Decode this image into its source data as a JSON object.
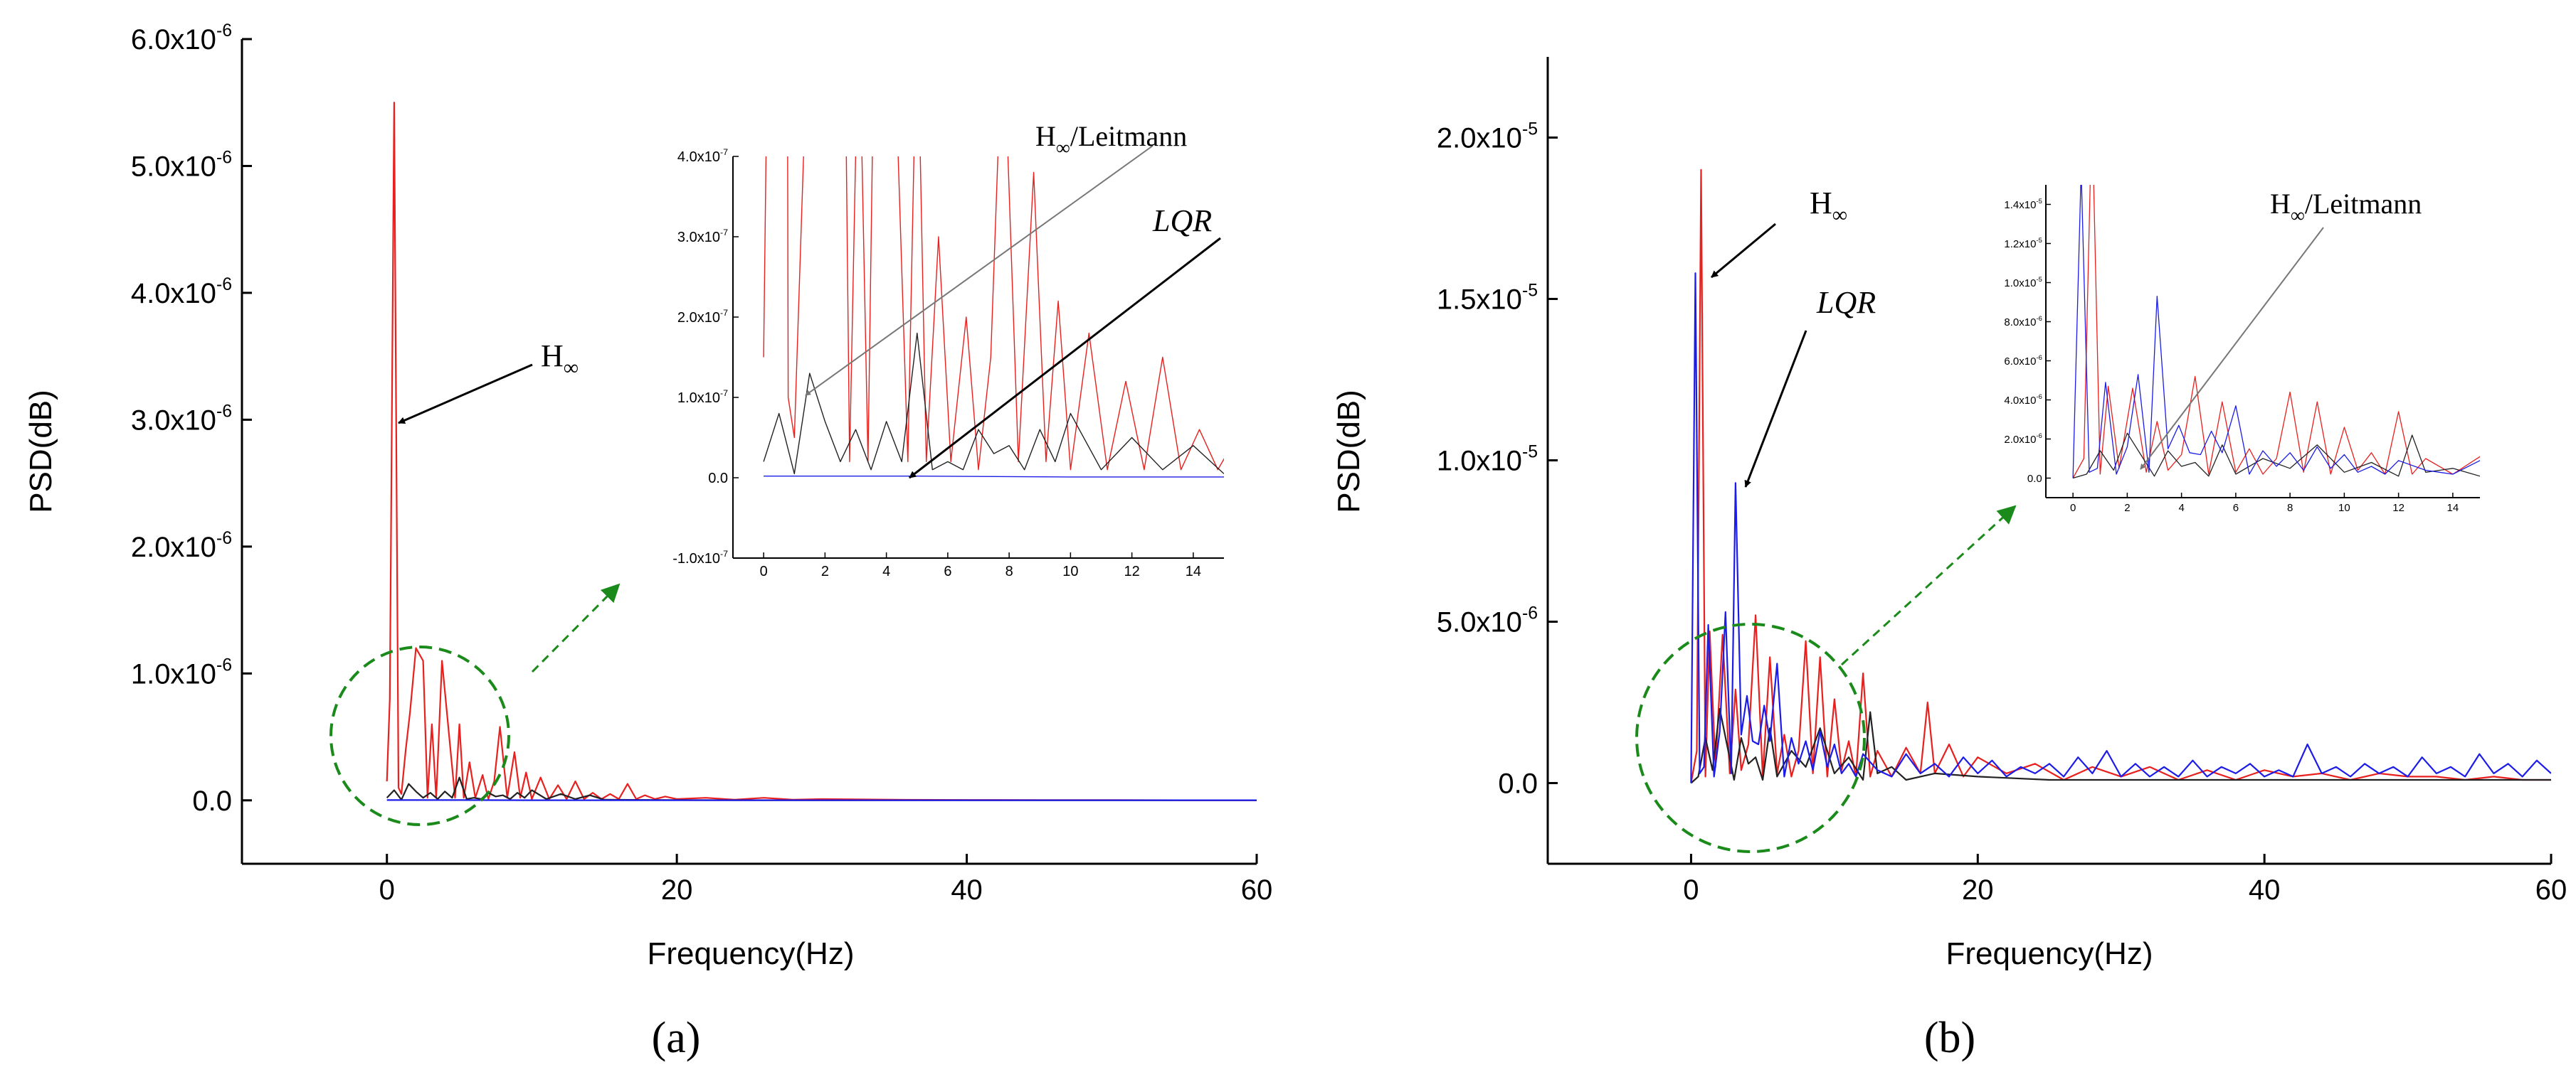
{
  "chart_data": [
    {
      "id": "a",
      "type": "line",
      "caption": "(a)",
      "xlabel": "Frequency(Hz)",
      "ylabel": "PSD(dB)",
      "xlim": [
        -10,
        60
      ],
      "ylim": [
        -5e-07,
        6e-06
      ],
      "xticks": [
        0,
        20,
        40,
        60
      ],
      "xtick_labels": [
        "0",
        "20",
        "40",
        "60"
      ],
      "yticks": [
        0,
        1e-06,
        2e-06,
        3e-06,
        4e-06,
        5e-06,
        6e-06
      ],
      "ytick_labels": [
        "0.0",
        "1.0x10",
        "2.0x10",
        "3.0x10",
        "4.0x10",
        "5.0x10",
        "6.0x10"
      ],
      "ytick_exponents": [
        "",
        "-6",
        "-6",
        "-6",
        "-6",
        "-6",
        "-6"
      ],
      "series": [
        {
          "name": "H∞",
          "color": "#e8201e",
          "x": [
            0,
            0.2,
            0.5,
            0.8,
            1.0,
            1.3,
            1.6,
            2.0,
            2.5,
            2.8,
            3.1,
            3.4,
            3.8,
            4.3,
            4.7,
            5.0,
            5.3,
            5.7,
            6.1,
            6.6,
            7.0,
            7.4,
            7.8,
            8.3,
            8.8,
            9.2,
            9.6,
            10.0,
            10.6,
            11.2,
            11.8,
            12.4,
            13.0,
            13.6,
            14.2,
            14.8,
            15.4,
            16.0,
            16.6,
            17.2,
            17.8,
            18.5,
            19.2,
            20.0,
            22.0,
            24.0,
            26.0,
            28.0,
            30.0,
            35.0,
            40.0,
            45.0,
            50.0,
            55.0,
            60.0
          ],
          "y": [
            1.5e-07,
            8e-07,
            5.5e-06,
            1e-07,
            5e-08,
            4e-07,
            7e-07,
            1.2e-06,
            1.1e-06,
            2e-08,
            6e-07,
            2e-08,
            1.1e-06,
            5e-07,
            2e-08,
            6e-07,
            2e-08,
            3e-07,
            2e-08,
            2e-07,
            1e-08,
            1.5e-07,
            5.8e-07,
            2e-08,
            3.8e-07,
            2e-08,
            2.2e-07,
            1e-08,
            1.8e-07,
            1e-08,
            1.2e-07,
            1e-08,
            1.5e-07,
            1e-08,
            6e-08,
            1e-08,
            5e-08,
            1e-08,
            1.3e-07,
            1e-08,
            4e-08,
            1e-08,
            3e-08,
            1e-08,
            2e-08,
            5e-09,
            2e-08,
            5e-09,
            1e-08,
            5e-09,
            3e-09,
            2e-09,
            2e-09,
            1e-09,
            1e-09
          ]
        },
        {
          "name": "H∞/Leitmann",
          "color": "#222222",
          "x": [
            0,
            0.5,
            1.0,
            1.5,
            2.0,
            2.5,
            3.0,
            3.5,
            4.0,
            4.5,
            5.0,
            5.5,
            6.0,
            6.5,
            7.0,
            7.5,
            8.0,
            8.5,
            9.0,
            9.5,
            10.0,
            11.0,
            12.0,
            13.0,
            14.0,
            15.0,
            20.0,
            30.0,
            40.0,
            50.0,
            60.0
          ],
          "y": [
            2e-08,
            8e-08,
            5e-09,
            1.3e-07,
            7e-08,
            2e-08,
            6e-08,
            1e-08,
            7e-08,
            2e-08,
            1.8e-07,
            1e-08,
            2e-08,
            1e-08,
            6e-08,
            3e-08,
            4e-08,
            1e-08,
            6e-08,
            2e-08,
            8e-08,
            1e-08,
            5e-08,
            1e-08,
            4e-08,
            5e-09,
            2e-09,
            1e-09,
            1e-09,
            1e-09,
            1e-09
          ]
        },
        {
          "name": "LQR",
          "color": "#1c1ce8",
          "x": [
            0,
            5,
            10,
            15,
            20,
            30,
            40,
            50,
            60
          ],
          "y": [
            2e-09,
            2e-09,
            1e-09,
            1e-09,
            1e-09,
            1e-09,
            1e-09,
            1e-09,
            1e-09
          ]
        }
      ],
      "annotations": [
        {
          "label": "H",
          "sub": "∞",
          "target_x": 1.0,
          "target_y": 3e-06
        }
      ],
      "inset": {
        "xlim": [
          -1,
          15
        ],
        "ylim": [
          -1e-07,
          4e-07
        ],
        "xticks": [
          0,
          2,
          4,
          6,
          8,
          10,
          12,
          14
        ],
        "xtick_labels": [
          "0",
          "2",
          "4",
          "6",
          "8",
          "10",
          "12",
          "14"
        ],
        "yticks": [
          -1e-07,
          0,
          1e-07,
          2e-07,
          3e-07,
          4e-07
        ],
        "ytick_labels": [
          "-1.0x10",
          "0.0",
          "1.0x10",
          "2.0x10",
          "3.0x10",
          "4.0x10"
        ],
        "ytick_exponents": [
          "-7",
          "",
          "-7",
          "-7",
          "-7",
          "-7"
        ],
        "annotations": [
          {
            "label": "H",
            "sub": "∞",
            "tail": "/Leitmann",
            "target_x": 1.9,
            "target_y": 1e-07
          },
          {
            "label": "LQR",
            "target_x": 5.0,
            "target_y": 0
          }
        ]
      }
    },
    {
      "id": "b",
      "type": "line",
      "caption": "(b)",
      "xlabel": "Frequency(Hz)",
      "ylabel": "PSD(dB)",
      "xlim": [
        -10,
        60
      ],
      "ylim": [
        -2.5e-06,
        2.25e-05
      ],
      "xticks": [
        0,
        20,
        40,
        60
      ],
      "xtick_labels": [
        "0",
        "20",
        "40",
        "60"
      ],
      "yticks": [
        0,
        5e-06,
        1e-05,
        1.5e-05,
        2e-05
      ],
      "ytick_labels": [
        "0.0",
        "5.0x10",
        "1.0x10",
        "1.5x10",
        "2.0x10"
      ],
      "ytick_exponents": [
        "",
        "-6",
        "-5",
        "-5",
        "-5"
      ],
      "series": [
        {
          "name": "H∞",
          "color": "#e8201e",
          "x": [
            0,
            0.4,
            0.7,
            1.0,
            1.3,
            1.7,
            2.2,
            2.7,
            3.1,
            3.5,
            4.0,
            4.5,
            5.0,
            5.5,
            6.0,
            6.5,
            7.0,
            7.5,
            8.0,
            8.5,
            9.0,
            9.5,
            10.0,
            10.5,
            11.0,
            11.5,
            12.0,
            12.5,
            13.0,
            14.0,
            15.0,
            16.0,
            16.5,
            17.0,
            18.0,
            19.0,
            20.0,
            22.0,
            24.0,
            26.0,
            28.0,
            30.0,
            32.0,
            34.0,
            36.0,
            38.0,
            40.0,
            42.0,
            44.0,
            46.0,
            48.0,
            50.0,
            52.0,
            54.0,
            56.0,
            58.0,
            60.0
          ],
          "y": [
            0,
            1e-06,
            1.9e-05,
            2e-07,
            4.7e-06,
            5e-07,
            4.6e-06,
            3e-07,
            2.9e-06,
            4e-07,
            1.2e-06,
            5.2e-06,
            2e-07,
            3.9e-06,
            3e-07,
            1.5e-06,
            2e-07,
            1e-06,
            4.4e-06,
            3e-07,
            3.9e-06,
            2e-07,
            2.6e-06,
            4e-07,
            1.3e-06,
            2e-07,
            3.4e-06,
            2e-07,
            1e-06,
            2e-07,
            1.1e-06,
            3e-07,
            2.5e-06,
            3e-07,
            1.2e-06,
            2e-07,
            8e-07,
            3e-07,
            6e-07,
            1e-07,
            5e-07,
            2e-07,
            5e-07,
            1e-07,
            4e-07,
            1e-07,
            4e-07,
            2e-07,
            3e-07,
            1e-07,
            3e-07,
            2e-07,
            2e-07,
            1e-07,
            2e-07,
            1e-07,
            1e-07
          ]
        },
        {
          "name": "H∞/Leitmann",
          "color": "#222222",
          "x": [
            0,
            0.5,
            1.0,
            1.5,
            2.0,
            2.5,
            3.0,
            3.5,
            4.0,
            4.5,
            5.0,
            5.5,
            6.0,
            7.0,
            8.0,
            9.0,
            10.0,
            11.0,
            12.0,
            12.5,
            13.0,
            14.0,
            15.0,
            17.0,
            20.0,
            25.0,
            30.0,
            40.0,
            50.0,
            60.0
          ],
          "y": [
            0,
            2e-07,
            1.4e-06,
            4e-07,
            2.3e-06,
            1.2e-06,
            1e-07,
            1.4e-06,
            6e-07,
            8e-07,
            1e-07,
            1.7e-06,
            2e-07,
            1e-06,
            5e-07,
            1.7e-06,
            3e-07,
            8e-07,
            1e-07,
            2.2e-06,
            3e-07,
            5e-07,
            1e-07,
            3e-07,
            2e-07,
            1e-07,
            1e-07,
            1e-07,
            1e-07,
            1e-07
          ]
        },
        {
          "name": "LQR",
          "color": "#1c1ce8",
          "x": [
            0,
            0.3,
            0.6,
            0.9,
            1.2,
            1.6,
            2.0,
            2.4,
            2.8,
            3.1,
            3.5,
            3.9,
            4.3,
            4.7,
            5.1,
            5.5,
            6.0,
            6.5,
            7.0,
            7.5,
            8.0,
            8.5,
            9.0,
            9.5,
            10.0,
            10.5,
            11.0,
            11.5,
            12.0,
            13.0,
            14.0,
            15.0,
            16.0,
            17.0,
            18.0,
            19.0,
            20.0,
            21.0,
            22.0,
            23.0,
            24.0,
            25.0,
            26.0,
            27.0,
            28.0,
            29.0,
            30.0,
            31.0,
            32.0,
            33.0,
            34.0,
            35.0,
            36.0,
            37.0,
            38.0,
            39.0,
            40.0,
            41.0,
            42.0,
            43.0,
            44.0,
            45.0,
            46.0,
            47.0,
            48.0,
            49.0,
            50.0,
            51.0,
            52.0,
            53.0,
            54.0,
            55.0,
            56.0,
            57.0,
            58.0,
            59.0,
            60.0
          ],
          "y": [
            0,
            1.58e-05,
            3e-07,
            5e-07,
            4.9e-06,
            2e-07,
            1.6e-06,
            5.3e-06,
            3e-07,
            9.3e-06,
            1.5e-06,
            2.7e-06,
            1.3e-06,
            1.2e-06,
            2.4e-06,
            1.3e-06,
            3.7e-06,
            2e-07,
            1.4e-06,
            6e-07,
            1.3e-06,
            4e-07,
            1.6e-06,
            5e-07,
            1.2e-06,
            3e-07,
            6e-07,
            2e-07,
            9e-07,
            4e-07,
            2e-07,
            9e-07,
            3e-07,
            6e-07,
            2e-07,
            8e-07,
            3e-07,
            7e-07,
            2e-07,
            5e-07,
            3e-07,
            6e-07,
            2e-07,
            8e-07,
            3e-07,
            1e-06,
            2e-07,
            6e-07,
            2e-07,
            5e-07,
            2e-07,
            7e-07,
            2e-07,
            5e-07,
            3e-07,
            6e-07,
            2e-07,
            4e-07,
            2e-07,
            1.2e-06,
            3e-07,
            5e-07,
            2e-07,
            6e-07,
            3e-07,
            5e-07,
            2e-07,
            8e-07,
            3e-07,
            5e-07,
            2e-07,
            9e-07,
            3e-07,
            6e-07,
            2e-07,
            7e-07,
            3e-07
          ]
        }
      ],
      "annotations": [
        {
          "label": "H",
          "sub": "∞",
          "target_x": 0.9,
          "target_y": 1.55e-05
        },
        {
          "label": "LQR",
          "target_x": 3.1,
          "target_y": 9.2e-06
        }
      ],
      "inset": {
        "xlim": [
          -1,
          15
        ],
        "ylim": [
          -1e-06,
          1.5e-05
        ],
        "xticks": [
          0,
          2,
          4,
          6,
          8,
          10,
          12,
          14
        ],
        "xtick_labels": [
          "0",
          "2",
          "4",
          "6",
          "8",
          "10",
          "12",
          "14"
        ],
        "yticks": [
          0,
          2e-06,
          4e-06,
          6e-06,
          8e-06,
          1e-05,
          1.2e-05,
          1.4e-05
        ],
        "ytick_labels": [
          "0.0",
          "2.0x10",
          "4.0x10",
          "6.0x10",
          "8.0x10",
          "1.0x10",
          "1.2x10",
          "1.4x10"
        ],
        "ytick_exponents": [
          "",
          "-6",
          "-6",
          "-6",
          "-6",
          "-5",
          "-5",
          "-5"
        ],
        "annotations": [
          {
            "label": "H",
            "sub": "∞",
            "tail": "/Leitmann",
            "target_x": 3.0,
            "target_y": 1e-06
          }
        ]
      }
    }
  ]
}
